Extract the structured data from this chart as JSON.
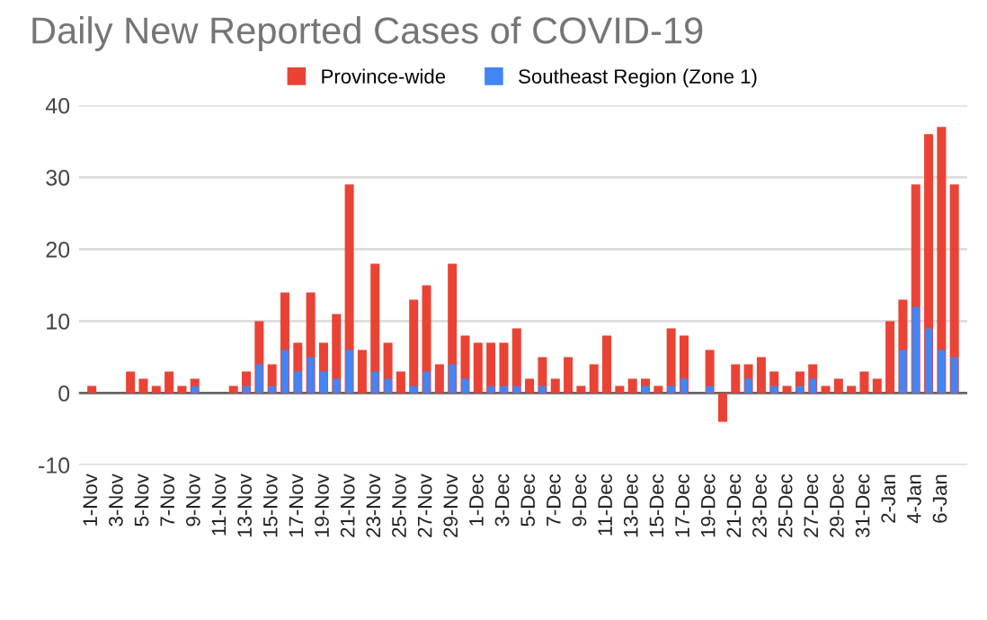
{
  "chart_data": {
    "type": "bar",
    "title": "Daily New Reported Cases of COVID-19",
    "categories": [
      "1-Nov",
      null,
      "3-Nov",
      null,
      "5-Nov",
      null,
      "7-Nov",
      null,
      "9-Nov",
      null,
      "11-Nov",
      null,
      "13-Nov",
      null,
      "15-Nov",
      null,
      "17-Nov",
      null,
      "19-Nov",
      null,
      "21-Nov",
      null,
      "23-Nov",
      null,
      "25-Nov",
      null,
      "27-Nov",
      null,
      "29-Nov",
      null,
      "1-Dec",
      null,
      "3-Dec",
      null,
      "5-Dec",
      null,
      "7-Dec",
      null,
      "9-Dec",
      null,
      "11-Dec",
      null,
      "13-Dec",
      null,
      "15-Dec",
      null,
      "17-Dec",
      null,
      "19-Dec",
      null,
      "21-Dec",
      null,
      "23-Dec",
      null,
      "25-Dec",
      null,
      "27-Dec",
      null,
      "29-Dec",
      null,
      "31-Dec",
      null,
      "2-Jan",
      null,
      "4-Jan",
      null,
      "6-Jan",
      null
    ],
    "series": [
      {
        "name": "Province-wide",
        "color": "#ea4335",
        "values": [
          1,
          0,
          0,
          3,
          2,
          1,
          3,
          1,
          2,
          0,
          0,
          1,
          3,
          10,
          4,
          14,
          7,
          14,
          7,
          11,
          29,
          6,
          18,
          7,
          3,
          13,
          15,
          4,
          18,
          8,
          7,
          7,
          7,
          9,
          2,
          5,
          2,
          5,
          1,
          4,
          8,
          1,
          2,
          2,
          1,
          9,
          8,
          0,
          6,
          -4,
          4,
          4,
          5,
          3,
          1,
          3,
          4,
          1,
          2,
          1,
          3,
          2,
          10,
          13,
          29,
          36,
          37,
          29
        ]
      },
      {
        "name": "Southeast Region (Zone 1)",
        "color": "#4285f4",
        "values": [
          0,
          0,
          0,
          0,
          0,
          0,
          0,
          0,
          1,
          0,
          0,
          0,
          1,
          4,
          1,
          6,
          3,
          5,
          3,
          2,
          6,
          0,
          3,
          2,
          0,
          1,
          3,
          0,
          4,
          2,
          0,
          1,
          1,
          1,
          0,
          1,
          0,
          0,
          0,
          0,
          0,
          0,
          0,
          1,
          0,
          1,
          2,
          0,
          1,
          0,
          0,
          2,
          0,
          1,
          0,
          1,
          2,
          0,
          0,
          0,
          0,
          0,
          0,
          6,
          12,
          9,
          6,
          5
        ]
      }
    ],
    "ylim": [
      -10,
      40
    ],
    "yticks": [
      -10,
      0,
      10,
      20,
      30,
      40
    ],
    "grid": "y",
    "legend": "top"
  }
}
